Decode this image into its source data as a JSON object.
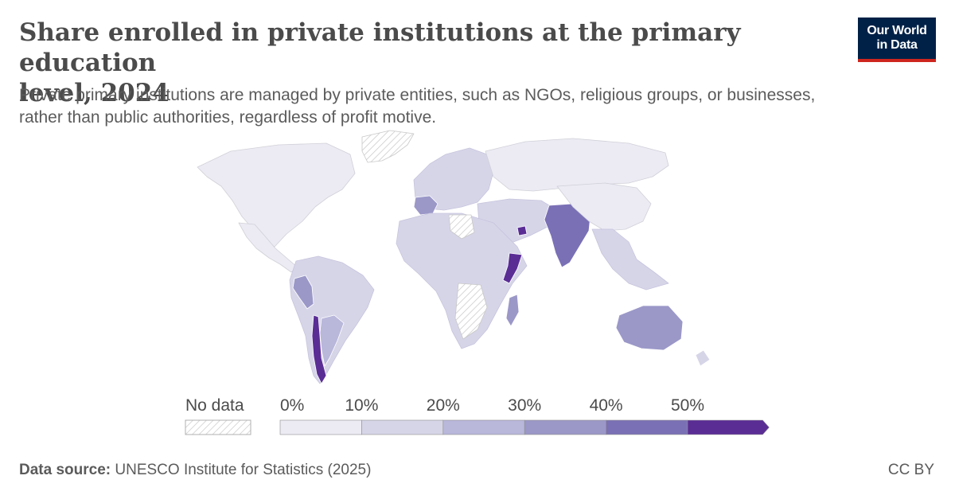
{
  "header": {
    "title_line1": "Share enrolled in private institutions at the primary education",
    "title_line2": "level, 2024",
    "subtitle_line1": "Private primary institutions are managed by private entities, such as NGOs, religious groups, or businesses,",
    "subtitle_line2": "rather than public authorities, regardless of profit motive."
  },
  "logo": {
    "line1": "Our World",
    "line2": "in Data",
    "bg_color": "#002147",
    "accent_color": "#ce261e"
  },
  "legend": {
    "nodata_label": "No data",
    "bins": [
      {
        "label": "0%",
        "color": "#ecebf4"
      },
      {
        "label": "10%",
        "color": "#d6d5e8"
      },
      {
        "label": "20%",
        "color": "#b9b7da"
      },
      {
        "label": "30%",
        "color": "#9b98c8"
      },
      {
        "label": "40%",
        "color": "#7a70b6"
      },
      {
        "label": "50%",
        "color": "#5a2d95"
      }
    ]
  },
  "footer": {
    "source_label": "Data source:",
    "source_text": "UNESCO Institute for Statistics (2025)",
    "license": "CC BY"
  }
}
